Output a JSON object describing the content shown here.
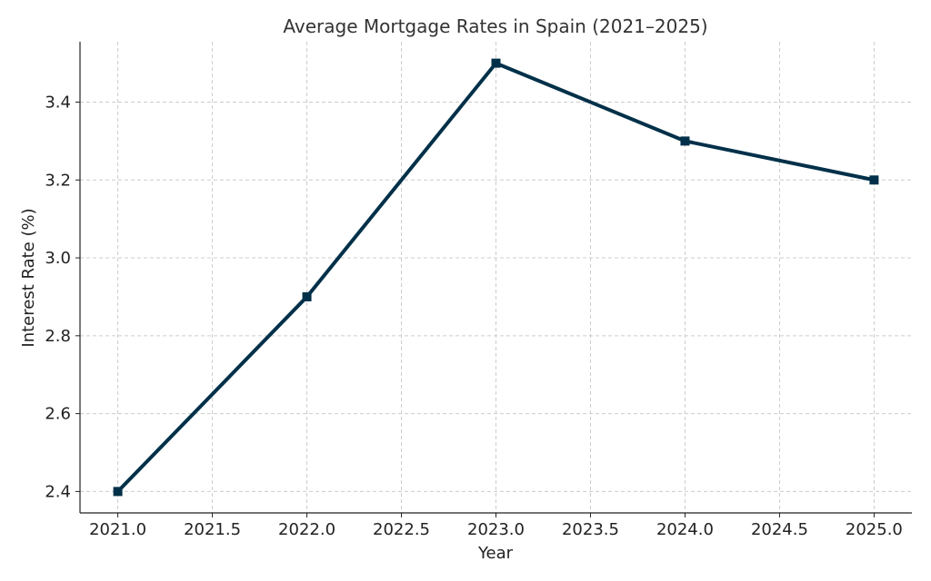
{
  "chart_data": {
    "type": "line",
    "title": "Average Mortgage Rates in Spain (2021–2025)",
    "x_label": "Year",
    "y_label": "Interest Rate (%)",
    "x": [
      2021,
      2022,
      2023,
      2024,
      2025
    ],
    "series": [
      {
        "name": "Interest Rate",
        "color": "#003049",
        "values": [
          2.4,
          2.9,
          3.5,
          3.3,
          3.2
        ]
      }
    ],
    "xlim": [
      2020.8,
      2025.2
    ],
    "xticks": [
      {
        "value": 2021,
        "label": "2021.0"
      },
      {
        "value": 2021.5,
        "label": "2021.5"
      },
      {
        "value": 2022,
        "label": "2022.0"
      },
      {
        "value": 2022.5,
        "label": "2022.5"
      },
      {
        "value": 2023,
        "label": "2023.0"
      },
      {
        "value": 2023.5,
        "label": "2023.5"
      },
      {
        "value": 2024,
        "label": "2024.0"
      },
      {
        "value": 2024.5,
        "label": "2024.5"
      },
      {
        "value": 2025,
        "label": "2025.0"
      }
    ],
    "ylim": [
      2.345,
      3.555
    ],
    "yticks": [
      2.4,
      2.6,
      2.8,
      {
        "value": 3,
        "label": "3.0"
      },
      3.2,
      3.4
    ],
    "grid": true
  }
}
